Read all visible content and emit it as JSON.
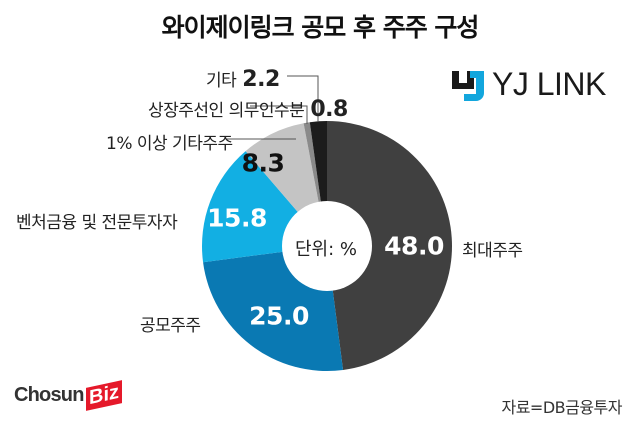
{
  "title": "와이제이링크 공모 후 주주 구성",
  "unit_label": "단위: %",
  "logo": {
    "brand": "YJ LINK",
    "icon": "yj-link-logo-icon"
  },
  "publisher": {
    "name_main": "Chosun",
    "name_accent": "Biz"
  },
  "source": "자료=DB금융투자",
  "labels": {
    "largest": "최대주주",
    "public": "공모주주",
    "venture": "벤처금융 및 전문투자자",
    "over1": "1% 이상 기타주주",
    "lockup": "상장주선인 의무인수분",
    "other": "기타"
  },
  "values_text": {
    "largest": "48.0",
    "public": "25.0",
    "venture": "15.8",
    "over1": "8.3",
    "lockup": "0.8",
    "other": "2.2"
  },
  "colors": {
    "largest": "#404040",
    "public": "#0a79b3",
    "venture": "#12afe3",
    "over1": "#c4c4c4",
    "lockup": "#8a8a8a",
    "other": "#1c1c1c"
  },
  "chart_data": {
    "type": "pie",
    "title": "와이제이링크 공모 후 주주 구성",
    "subtitle": "단위: %",
    "categories": [
      "최대주주",
      "공모주주",
      "벤처금융 및 전문투자자",
      "1% 이상 기타주주",
      "상장주선인 의무인수분",
      "기타"
    ],
    "values": [
      48.0,
      25.0,
      15.8,
      8.3,
      0.8,
      2.2
    ],
    "colors": [
      "#404040",
      "#0a79b3",
      "#12afe3",
      "#c4c4c4",
      "#8a8a8a",
      "#1c1c1c"
    ],
    "donut": true,
    "start_angle": "12 o'clock, clockwise",
    "source": "자료=DB금융투자"
  }
}
